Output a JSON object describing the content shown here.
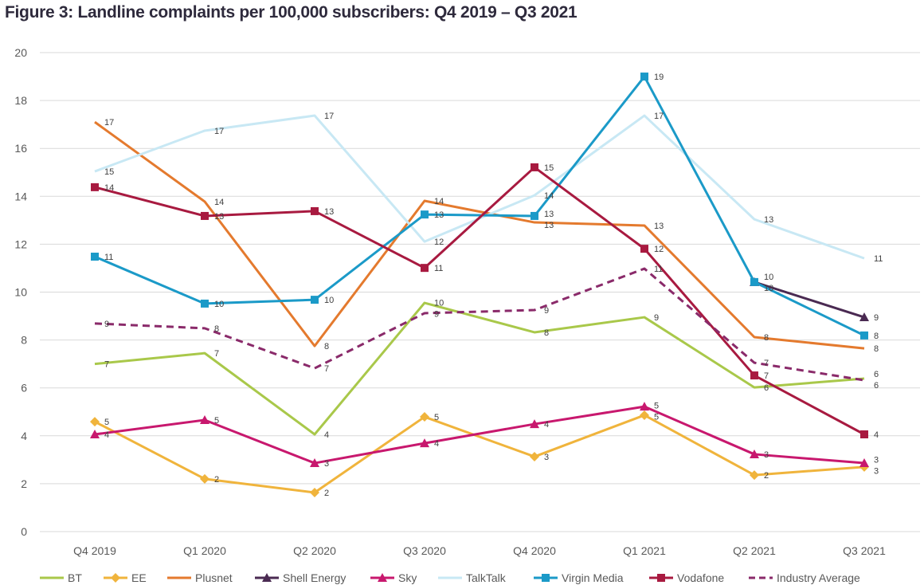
{
  "title": "Figure 3: Landline complaints per 100,000 subscribers: Q4 2019 – Q3 2021",
  "chart_data": {
    "type": "line",
    "title": "Figure 3: Landline complaints per 100,000 subscribers: Q4 2019 – Q3 2021",
    "xlabel": "",
    "ylabel": "",
    "ylim": [
      0,
      20
    ],
    "yticks": [
      0,
      2,
      4,
      6,
      8,
      10,
      12,
      14,
      16,
      18,
      20
    ],
    "grid": true,
    "legend": "bottom",
    "categories": [
      "Q4 2019",
      "Q1 2020",
      "Q2 2020",
      "Q3 2020",
      "Q4 2020",
      "Q1 2021",
      "Q2 2021",
      "Q3 2021"
    ],
    "series": [
      {
        "name": "BT",
        "color": "#a9c84a",
        "marker": "none",
        "dash": false,
        "values": [
          7.0,
          7.45,
          4.06,
          9.55,
          8.32,
          8.95,
          6.02,
          6.39
        ]
      },
      {
        "name": "EE",
        "color": "#f0b43c",
        "marker": "diamond",
        "dash": false,
        "values": [
          4.59,
          2.2,
          1.63,
          4.79,
          3.13,
          4.86,
          2.36,
          2.7
        ]
      },
      {
        "name": "Plusnet",
        "color": "#e47a2e",
        "marker": "none",
        "dash": false,
        "values": [
          17.1,
          13.78,
          7.75,
          13.81,
          12.91,
          12.78,
          8.12,
          7.65
        ]
      },
      {
        "name": "Shell Energy",
        "color": "#4a2a52",
        "marker": "triangle",
        "dash": false,
        "values": [
          null,
          null,
          null,
          null,
          null,
          null,
          10.42,
          8.95
        ]
      },
      {
        "name": "Sky",
        "color": "#c8186e",
        "marker": "triangle",
        "dash": false,
        "values": [
          4.06,
          4.66,
          2.86,
          3.69,
          4.49,
          5.22,
          3.23,
          2.86
        ]
      },
      {
        "name": "TalkTalk",
        "color": "#c8e8f4",
        "marker": "none",
        "dash": false,
        "values": [
          15.04,
          16.74,
          17.37,
          12.11,
          14.04,
          17.37,
          13.04,
          11.41
        ]
      },
      {
        "name": "Virgin Media",
        "color": "#1b9ac8",
        "marker": "square",
        "dash": false,
        "values": [
          11.48,
          9.52,
          9.68,
          13.24,
          13.18,
          19.0,
          10.42,
          8.19
        ]
      },
      {
        "name": "Vodafone",
        "color": "#a81a40",
        "marker": "square",
        "dash": false,
        "values": [
          14.38,
          13.18,
          13.38,
          11.01,
          15.21,
          11.81,
          6.52,
          4.06
        ]
      },
      {
        "name": "Industry Average",
        "color": "#8a2a6a",
        "marker": "none",
        "dash": true,
        "values": [
          8.69,
          8.49,
          6.82,
          9.12,
          9.25,
          10.98,
          7.05,
          6.32
        ]
      }
    ]
  }
}
